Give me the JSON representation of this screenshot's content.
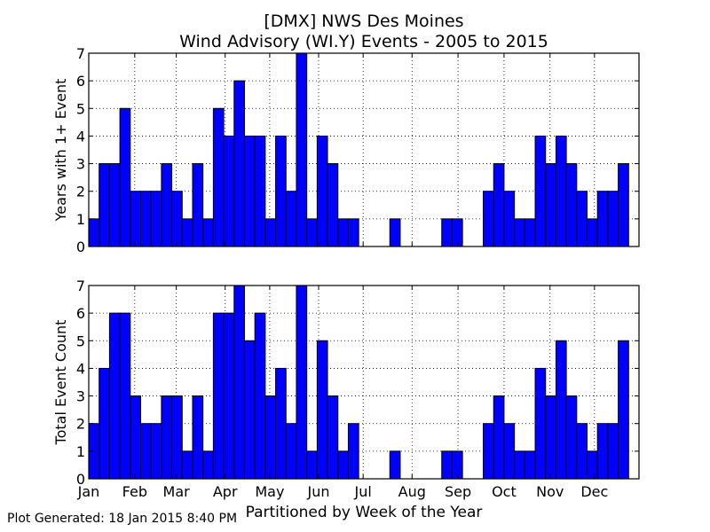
{
  "title_line1": "[DMX] NWS Des Moines",
  "title_line2": "Wind Advisory (WI.Y) Events - 2005 to 2015",
  "generated": "Plot Generated: 18 Jan 2015 8:40 PM",
  "colors": {
    "bar": "#0000ff",
    "edge": "#000000",
    "grid": "#000000"
  },
  "chart_data": [
    {
      "type": "bar",
      "panel": "top",
      "xlabel": "",
      "ylabel": "Years with 1+ Event",
      "ylim": [
        0,
        7
      ],
      "xlim": [
        1,
        54
      ],
      "yticks": [
        0,
        1,
        2,
        3,
        4,
        5,
        6,
        7
      ],
      "grid": true,
      "series": [
        {
          "values": [
            1,
            3,
            3,
            5,
            2,
            2,
            2,
            3,
            2,
            1,
            3,
            1,
            5,
            4,
            6,
            4,
            4,
            1,
            4,
            2,
            7,
            1,
            4,
            3,
            1,
            1,
            0,
            0,
            0,
            1,
            0,
            0,
            0,
            0,
            1,
            1,
            0,
            0,
            2,
            3,
            2,
            1,
            1,
            4,
            3,
            4,
            3,
            2,
            1,
            2,
            2,
            3
          ]
        }
      ]
    },
    {
      "type": "bar",
      "panel": "bottom",
      "xlabel": "Partitioned by Week of the Year",
      "ylabel": "Total Event Count",
      "ylim": [
        0,
        7
      ],
      "xlim": [
        1,
        54
      ],
      "yticks": [
        0,
        1,
        2,
        3,
        4,
        5,
        6,
        7
      ],
      "xticks": [
        {
          "week": 1,
          "label": "Jan"
        },
        {
          "week": 5.43,
          "label": "Feb"
        },
        {
          "week": 9.43,
          "label": "Mar"
        },
        {
          "week": 14.14,
          "label": "Apr"
        },
        {
          "week": 18.43,
          "label": "May"
        },
        {
          "week": 23.14,
          "label": "Jun"
        },
        {
          "week": 27.43,
          "label": "Jul"
        },
        {
          "week": 32.14,
          "label": "Aug"
        },
        {
          "week": 36.57,
          "label": "Sep"
        },
        {
          "week": 41.0,
          "label": "Oct"
        },
        {
          "week": 45.43,
          "label": "Nov"
        },
        {
          "week": 49.71,
          "label": "Dec"
        }
      ],
      "grid": true,
      "series": [
        {
          "values": [
            2,
            4,
            6,
            6,
            3,
            2,
            2,
            3,
            3,
            1,
            3,
            1,
            6,
            6,
            7,
            5,
            6,
            3,
            4,
            2,
            7,
            1,
            5,
            3,
            1,
            2,
            0,
            0,
            0,
            1,
            0,
            0,
            0,
            0,
            1,
            1,
            0,
            0,
            2,
            3,
            2,
            1,
            1,
            4,
            3,
            5,
            3,
            2,
            1,
            2,
            2,
            5
          ]
        }
      ]
    }
  ]
}
